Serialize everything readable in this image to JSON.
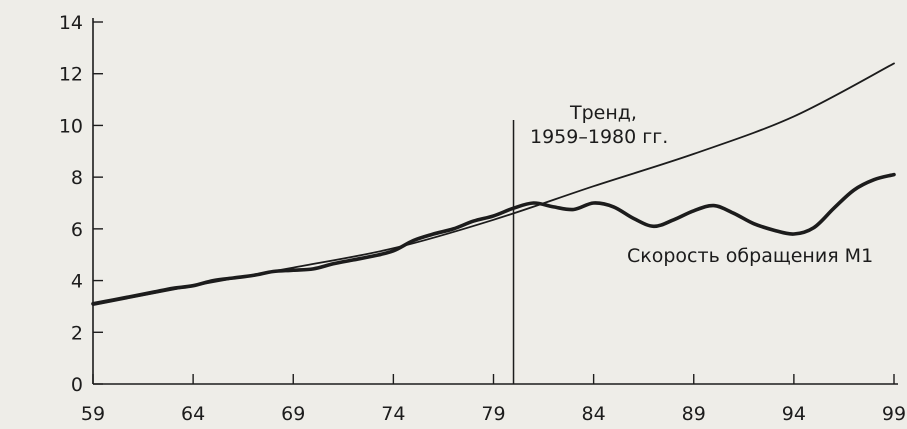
{
  "chart_data": {
    "type": "line",
    "title": "",
    "xlabel": "",
    "ylabel": "",
    "xlim": [
      1959,
      1999
    ],
    "ylim": [
      0,
      14
    ],
    "x_ticks": [
      1959,
      1964,
      1969,
      1974,
      1979,
      1984,
      1989,
      1994,
      1999
    ],
    "x_tick_labels": [
      "59",
      "64",
      "69",
      "74",
      "79",
      "84",
      "89",
      "94",
      "99"
    ],
    "y_ticks": [
      0,
      2,
      4,
      6,
      8,
      10,
      12,
      14
    ],
    "y_tick_labels": [
      "0",
      "2",
      "4",
      "6",
      "8",
      "10",
      "12",
      "14"
    ],
    "grid": false,
    "series": [
      {
        "name": "Скорость обращения М1",
        "x": [
          1959,
          1960,
          1961,
          1962,
          1963,
          1964,
          1965,
          1966,
          1967,
          1968,
          1969,
          1970,
          1971,
          1972,
          1973,
          1974,
          1975,
          1976,
          1977,
          1978,
          1979,
          1980,
          1981,
          1982,
          1983,
          1984,
          1985,
          1986,
          1987,
          1988,
          1989,
          1990,
          1991,
          1992,
          1993,
          1994,
          1995,
          1996,
          1997,
          1998,
          1999
        ],
        "y": [
          3.1,
          3.25,
          3.4,
          3.55,
          3.7,
          3.8,
          4.0,
          4.1,
          4.2,
          4.35,
          4.4,
          4.45,
          4.65,
          4.8,
          4.95,
          5.15,
          5.55,
          5.8,
          6.0,
          6.3,
          6.5,
          6.8,
          7.0,
          6.85,
          6.75,
          7.0,
          6.85,
          6.4,
          6.1,
          6.35,
          6.7,
          6.9,
          6.6,
          6.2,
          5.95,
          5.8,
          6.05,
          6.8,
          7.5,
          7.9,
          8.1
        ]
      },
      {
        "name": "Тренд",
        "x": [
          1959,
          1964,
          1969,
          1974,
          1979,
          1984,
          1989,
          1994,
          1999
        ],
        "y": [
          3.05,
          3.8,
          4.5,
          5.25,
          6.35,
          7.65,
          8.9,
          10.35,
          12.4
        ]
      }
    ],
    "vline": {
      "x": 1980
    },
    "annotations": {
      "trend_line1": "Тренд,",
      "trend_line2": "1959–1980 гг.",
      "series_label": "Скорость обращения М1"
    }
  }
}
